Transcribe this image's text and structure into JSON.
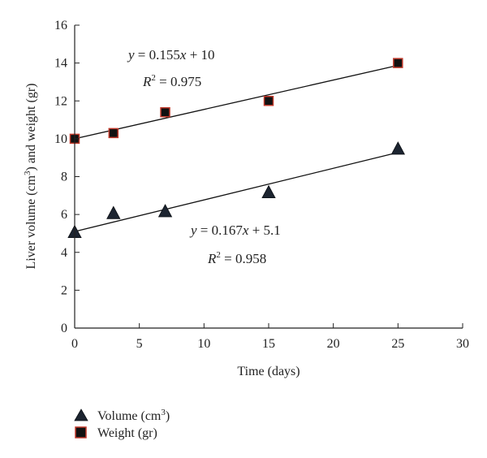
{
  "chart_data": {
    "type": "scatter",
    "xlabel": "Time (days)",
    "ylabel": "Liver volume (cm³) and weight (gr)",
    "ylabel_parts": {
      "pre": "Liver volume (cm",
      "sup": "3",
      "post": ") and weight (gr)"
    },
    "xlim": [
      0,
      30
    ],
    "ylim": [
      0,
      16
    ],
    "xticks": [
      0,
      5,
      10,
      15,
      20,
      25,
      30
    ],
    "yticks": [
      0,
      2,
      4,
      6,
      8,
      10,
      12,
      14,
      16
    ],
    "grid": false,
    "legend_position": "bottom-left",
    "series": [
      {
        "name": "Volume (cm³)",
        "name_parts": {
          "pre": "Volume (cm",
          "sup": "3",
          "post": ")"
        },
        "marker": "triangle",
        "color": "#1c2430",
        "x": [
          0,
          3,
          7,
          15,
          25
        ],
        "y": [
          5.1,
          6.1,
          6.2,
          7.2,
          9.5
        ],
        "fit": {
          "slope": 0.167,
          "intercept": 5.1,
          "x_range": [
            0,
            25
          ]
        },
        "equation": {
          "y": "y",
          "rest": " = 0.167",
          "x": "x",
          "tail": " + 5.1"
        },
        "r2": {
          "r": "R",
          "sup": "2",
          "rest": " = 0.958"
        }
      },
      {
        "name": "Weight (gr)",
        "marker": "square",
        "color": "#111111",
        "edge_color": "#c0392b",
        "x": [
          0,
          3,
          7,
          15,
          25
        ],
        "y": [
          10.0,
          10.3,
          11.4,
          12.0,
          14.0
        ],
        "fit": {
          "slope": 0.155,
          "intercept": 10,
          "x_range": [
            0,
            25
          ]
        },
        "equation": {
          "y": "y",
          "rest": " = 0.155",
          "x": "x",
          "tail": " + 10"
        },
        "r2": {
          "r": "R",
          "sup": "2",
          "rest": " = 0.975"
        }
      }
    ]
  }
}
